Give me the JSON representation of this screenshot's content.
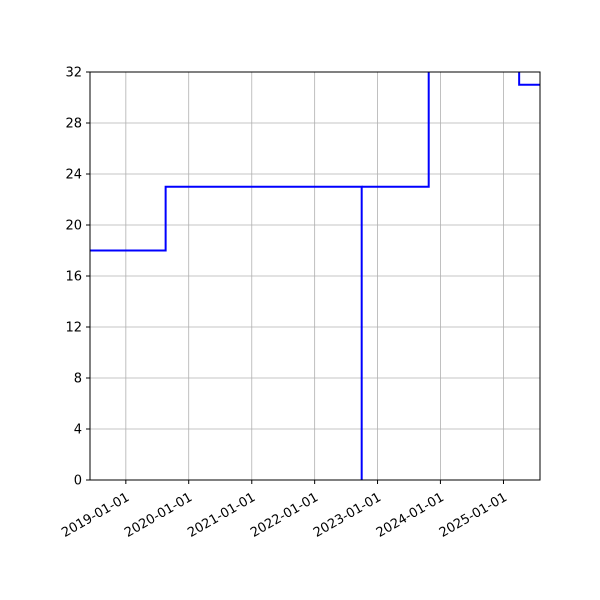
{
  "chart_data": {
    "type": "line",
    "step": "post",
    "color": "#0000ff",
    "grid": true,
    "x_axis_type": "date",
    "xlim": [
      "2018-06-07",
      "2025-08-01"
    ],
    "ylim": [
      0,
      32
    ],
    "x_ticks": [
      "2019-01-01",
      "2020-01-01",
      "2021-01-01",
      "2022-01-01",
      "2023-01-01",
      "2024-01-01",
      "2025-01-01"
    ],
    "y_ticks": [
      0,
      4,
      8,
      12,
      16,
      20,
      24,
      28,
      32
    ],
    "series": [
      {
        "points": [
          {
            "x": "2018-06-07",
            "y": 18
          },
          {
            "x": "2019-08-20",
            "y": 23
          },
          {
            "x": "2022-10-01",
            "y": 0
          }
        ]
      },
      {
        "points": [
          {
            "x": "2022-10-01",
            "y": 23
          },
          {
            "x": "2023-10-25",
            "y": 32
          }
        ]
      },
      {
        "points": [
          {
            "x": "2025-04-01",
            "y": 32
          },
          {
            "x": "2025-04-02",
            "y": 31
          },
          {
            "x": "2025-08-01",
            "y": 31
          }
        ]
      }
    ]
  }
}
